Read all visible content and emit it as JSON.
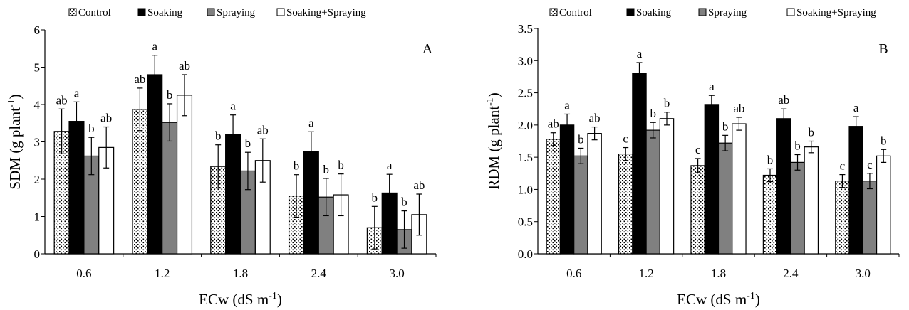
{
  "chart_data": [
    {
      "type": "bar",
      "panel_label": "A",
      "xlabel": "ECw (dS m",
      "xlabel_sup": "-1",
      "xlabel_tail": ")",
      "ylabel": "SDM (g plant",
      "ylabel_sup": "-1",
      "ylabel_tail": ")",
      "ylim": [
        0,
        6
      ],
      "yticks": [
        "0",
        "1",
        "2",
        "3",
        "4",
        "5",
        "6"
      ],
      "categories": [
        "0.6",
        "1.2",
        "1.8",
        "2.4",
        "3.0"
      ],
      "grid": false,
      "legend_position": "top",
      "series": [
        {
          "name": "Control",
          "fill": "dots",
          "values": [
            3.28,
            3.87,
            2.34,
            1.55,
            0.7
          ],
          "errors": [
            0.6,
            0.57,
            0.58,
            0.57,
            0.57
          ],
          "letters": [
            "ab",
            "ab",
            "b",
            "b",
            "b"
          ]
        },
        {
          "name": "Soaking",
          "fill": "black",
          "values": [
            3.55,
            4.8,
            3.2,
            2.75,
            1.63
          ],
          "errors": [
            0.52,
            0.52,
            0.52,
            0.52,
            0.5
          ],
          "letters": [
            "a",
            "a",
            "a",
            "a",
            "a"
          ]
        },
        {
          "name": "Spraying",
          "fill": "gray",
          "values": [
            2.62,
            3.52,
            2.22,
            1.52,
            0.65
          ],
          "errors": [
            0.5,
            0.5,
            0.5,
            0.5,
            0.5
          ],
          "letters": [
            "b",
            "b",
            "b",
            "b",
            "b"
          ]
        },
        {
          "name": "Soaking+Spraying",
          "fill": "white",
          "values": [
            2.85,
            4.25,
            2.5,
            1.58,
            1.05
          ],
          "errors": [
            0.55,
            0.55,
            0.58,
            0.56,
            0.55
          ],
          "letters": [
            "ab",
            "ab",
            "ab",
            "b",
            "ab"
          ]
        }
      ]
    },
    {
      "type": "bar",
      "panel_label": "B",
      "xlabel": "ECw (dS m",
      "xlabel_sup": "-1",
      "xlabel_tail": ")",
      "ylabel": "RDM (g plant",
      "ylabel_sup": "-1",
      "ylabel_tail": ")",
      "ylim": [
        0,
        3.5
      ],
      "yticks": [
        "0.0",
        "0.5",
        "1.0",
        "1.5",
        "2.0",
        "2.5",
        "3.0",
        "3.5"
      ],
      "categories": [
        "0.6",
        "1.2",
        "1.8",
        "2.4",
        "3.0"
      ],
      "grid": false,
      "legend_position": "top",
      "series": [
        {
          "name": "Control",
          "fill": "dots",
          "values": [
            1.78,
            1.55,
            1.37,
            1.22,
            1.13
          ],
          "errors": [
            0.1,
            0.1,
            0.11,
            0.1,
            0.1
          ],
          "letters": [
            "ab",
            "c",
            "c",
            "b",
            "c"
          ]
        },
        {
          "name": "Soaking",
          "fill": "black",
          "values": [
            2.0,
            2.8,
            2.32,
            2.1,
            1.98
          ],
          "errors": [
            0.17,
            0.17,
            0.14,
            0.15,
            0.15
          ],
          "letters": [
            "a",
            "a",
            "a",
            "ab",
            "a"
          ]
        },
        {
          "name": "Spraying",
          "fill": "gray",
          "values": [
            1.52,
            1.92,
            1.72,
            1.42,
            1.13
          ],
          "errors": [
            0.12,
            0.12,
            0.12,
            0.12,
            0.12
          ],
          "letters": [
            "b",
            "b",
            "b",
            "b",
            "c"
          ]
        },
        {
          "name": "Soaking+Spraying",
          "fill": "white",
          "values": [
            1.87,
            2.1,
            2.02,
            1.66,
            1.52
          ],
          "errors": [
            0.1,
            0.1,
            0.1,
            0.09,
            0.1
          ],
          "letters": [
            "ab",
            "b",
            "ab",
            "b",
            "b"
          ]
        }
      ]
    }
  ]
}
